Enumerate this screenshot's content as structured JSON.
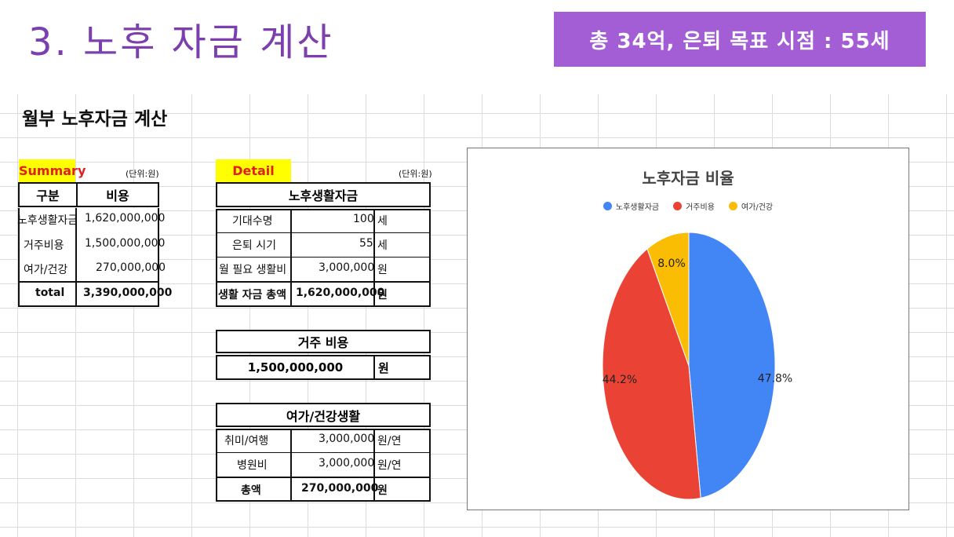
{
  "page_title": "3. 노후 자금 계산",
  "badge_text": "총 34억, 은퇴 목표 시점  : 55세",
  "sheet_title": "월부 노후자금 계산",
  "summary": {
    "label": "Summary",
    "unit": "(단위:원)",
    "headers": [
      "구분",
      "비용"
    ],
    "rows": [
      {
        "name": "노후생활자금",
        "value": "1,620,000,000"
      },
      {
        "name": "거주비용",
        "value": "1,500,000,000"
      },
      {
        "name": "여가/건강",
        "value": "270,000,000"
      }
    ],
    "total": {
      "name": "total",
      "value": "3,390,000,000"
    }
  },
  "detail": {
    "label": "Detail",
    "unit": "(단위:원)",
    "living": {
      "header": "노후생활자금",
      "rows": [
        {
          "name": "기대수명",
          "value": "100",
          "unit": "세"
        },
        {
          "name": "은퇴 시기",
          "value": "55",
          "unit": "세"
        },
        {
          "name": "월 필요 생활비",
          "value": "3,000,000",
          "unit": "원"
        }
      ],
      "total": {
        "name": "생활 자금 총액",
        "value": "1,620,000,000",
        "unit": "원"
      }
    },
    "housing": {
      "header": "거주 비용",
      "value": "1,500,000,000",
      "unit": "원"
    },
    "leisure": {
      "header": "여가/건강생활",
      "rows": [
        {
          "name": "취미/여행",
          "value": "3,000,000",
          "unit": "원/연"
        },
        {
          "name": "병원비",
          "value": "3,000,000",
          "unit": "원/연"
        }
      ],
      "total": {
        "name": "총액",
        "value": "270,000,000",
        "unit": "원"
      }
    }
  },
  "chart_data": {
    "type": "pie",
    "title": "노후자금 비율",
    "categories": [
      "노후생활자금",
      "거주비용",
      "여가/건강"
    ],
    "values": [
      47.8,
      44.2,
      8.0
    ],
    "labels": [
      "47.8%",
      "44.2%",
      "8.0%"
    ],
    "colors": [
      "#4285f4",
      "#ea4335",
      "#fbbc04"
    ],
    "legend": "top"
  }
}
